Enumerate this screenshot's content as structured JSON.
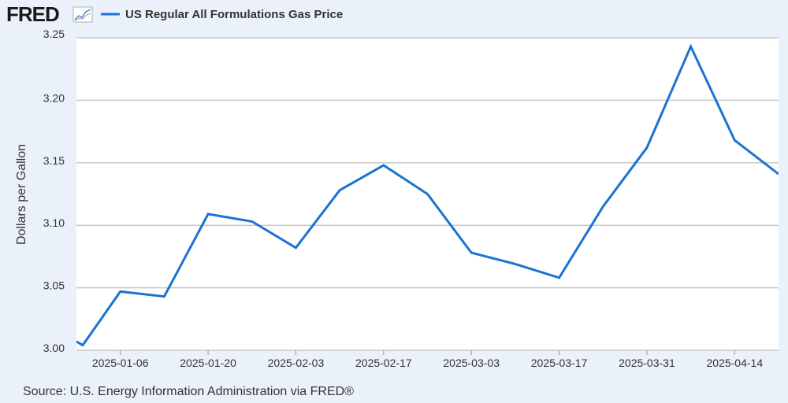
{
  "header": {
    "logo_text": "FRED",
    "logo_icon": "line-chart-icon"
  },
  "chart_data": {
    "type": "line",
    "ylabel": "Dollars per Gallon",
    "xlabel": "",
    "ylim": [
      3.0,
      3.25
    ],
    "y_ticks": [
      "3.00",
      "3.05",
      "3.10",
      "3.15",
      "3.20",
      "3.25"
    ],
    "x_range": [
      "2024-12-30",
      "2025-04-21"
    ],
    "x_tick_labels": [
      "2025-01-06",
      "2025-01-20",
      "2025-02-03",
      "2025-02-17",
      "2025-03-03",
      "2025-03-17",
      "2025-03-31",
      "2025-04-14"
    ],
    "grid": "horizontal",
    "legend_placement": "top-left",
    "series": [
      {
        "name": "US Regular All Formulations Gas Price",
        "color": "#1a72d4",
        "points": [
          {
            "x": "2024-12-30",
            "y": 3.007
          },
          {
            "x": "2024-12-31",
            "y": 3.004
          },
          {
            "x": "2025-01-06",
            "y": 3.047
          },
          {
            "x": "2025-01-13",
            "y": 3.043
          },
          {
            "x": "2025-01-20",
            "y": 3.109
          },
          {
            "x": "2025-01-27",
            "y": 3.103
          },
          {
            "x": "2025-02-03",
            "y": 3.082
          },
          {
            "x": "2025-02-10",
            "y": 3.128
          },
          {
            "x": "2025-02-17",
            "y": 3.148
          },
          {
            "x": "2025-02-24",
            "y": 3.125
          },
          {
            "x": "2025-03-03",
            "y": 3.078
          },
          {
            "x": "2025-03-10",
            "y": 3.069
          },
          {
            "x": "2025-03-17",
            "y": 3.058
          },
          {
            "x": "2025-03-24",
            "y": 3.115
          },
          {
            "x": "2025-03-31",
            "y": 3.162
          },
          {
            "x": "2025-04-07",
            "y": 3.243
          },
          {
            "x": "2025-04-14",
            "y": 3.168
          },
          {
            "x": "2025-04-21",
            "y": 3.141
          }
        ]
      }
    ]
  },
  "footer": {
    "source": "Source: U.S. Energy Information Administration via FRED®"
  },
  "colors": {
    "background": "#eaf1fa",
    "plot_background": "#ffffff",
    "gridline": "#c8c8c8",
    "line": "#1a72d4",
    "text": "#333333"
  }
}
